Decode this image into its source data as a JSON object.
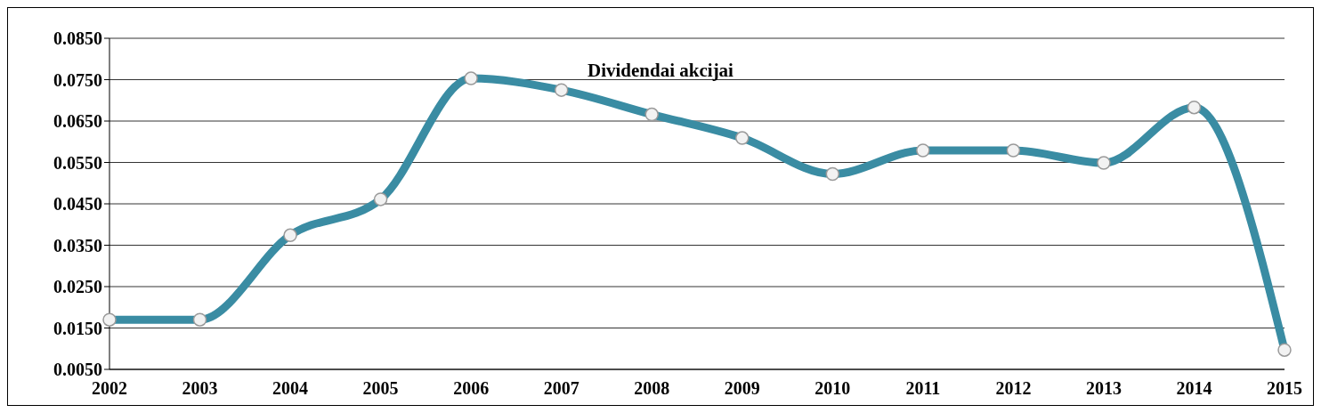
{
  "chart_data": {
    "type": "line",
    "title": "Dividendai akcijai",
    "categories": [
      "2002",
      "2003",
      "2004",
      "2005",
      "2006",
      "2007",
      "2008",
      "2009",
      "2010",
      "2011",
      "2012",
      "2013",
      "2014",
      "2015"
    ],
    "series": [
      {
        "color": "#3a8ca3",
        "values": [
          0.017,
          0.017,
          0.0374,
          0.0461,
          0.0753,
          0.0725,
          0.0666,
          0.0609,
          0.0522,
          0.0579,
          0.0579,
          0.0549,
          0.0683,
          0.0097
        ]
      }
    ],
    "ylim": [
      0.005,
      0.085
    ],
    "yticks": [
      {
        "value": 0.005,
        "label": "0.0050"
      },
      {
        "value": 0.015,
        "label": "0.0150"
      },
      {
        "value": 0.025,
        "label": "0.0250"
      },
      {
        "value": 0.035,
        "label": "0.0350"
      },
      {
        "value": 0.045,
        "label": "0.0450"
      },
      {
        "value": 0.055,
        "label": "0.0550"
      },
      {
        "value": 0.065,
        "label": "0.0650"
      },
      {
        "value": 0.075,
        "label": "0.0750"
      },
      {
        "value": 0.085,
        "label": "0.0850"
      }
    ],
    "grid": "y",
    "marker": "circle",
    "line_style": "solid",
    "legend": false
  }
}
